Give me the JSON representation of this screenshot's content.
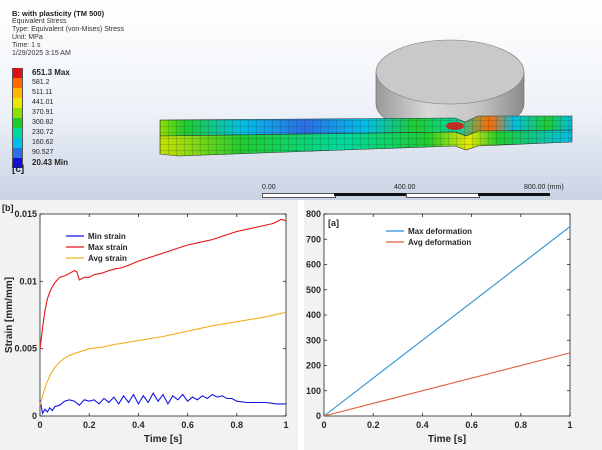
{
  "fea": {
    "title": "B: with plasticity (TM 500)",
    "lines": [
      "Equivalent Stress",
      "Type: Equivalent (von-Mises) Stress",
      "Unit: MPa",
      "Time: 1 s",
      "1/29/2025 3:15 AM"
    ],
    "legend": [
      {
        "value": "651.3 Max",
        "color": "#e01010",
        "bold": true
      },
      {
        "value": "581.2",
        "color": "#ff6a00",
        "bold": false
      },
      {
        "value": "511.11",
        "color": "#ffb400",
        "bold": false
      },
      {
        "value": "441.01",
        "color": "#e8e800",
        "bold": false
      },
      {
        "value": "370.91",
        "color": "#8fe000",
        "bold": false
      },
      {
        "value": "300.82",
        "color": "#1ecc2e",
        "bold": false
      },
      {
        "value": "230.72",
        "color": "#00d8a0",
        "bold": false
      },
      {
        "value": "160.62",
        "color": "#00bfe6",
        "bold": false
      },
      {
        "value": "90.527",
        "color": "#2a6ee8",
        "bold": false
      },
      {
        "value": "20.43 Min",
        "color": "#1010d8",
        "bold": true
      }
    ],
    "panel_label": "[c]",
    "scale_labels": [
      "0.00",
      "400.00",
      "800.00 (mm)"
    ]
  },
  "chart_data": [
    {
      "type": "line",
      "panel_label": "[b]",
      "xlabel": "Time [s]",
      "ylabel": "Strain [mm/mm]",
      "xlim": [
        0,
        1
      ],
      "ylim": [
        0,
        0.015
      ],
      "xticks": [
        "0",
        "0.2",
        "0.4",
        "0.6",
        "0.8",
        "1"
      ],
      "yticks": [
        "0",
        "0.005",
        "0.01",
        "0.015"
      ],
      "ytick_values": [
        0,
        0.005,
        0.01,
        0.015
      ],
      "legend_position": "top-left",
      "series": [
        {
          "name": "Min strain",
          "color": "#1414e6",
          "x": [
            0,
            0.01,
            0.02,
            0.03,
            0.04,
            0.05,
            0.06,
            0.08,
            0.1,
            0.12,
            0.14,
            0.16,
            0.18,
            0.2,
            0.22,
            0.24,
            0.26,
            0.28,
            0.3,
            0.32,
            0.34,
            0.36,
            0.38,
            0.4,
            0.42,
            0.44,
            0.46,
            0.48,
            0.5,
            0.52,
            0.54,
            0.56,
            0.58,
            0.6,
            0.62,
            0.64,
            0.66,
            0.68,
            0.7,
            0.72,
            0.74,
            0.76,
            0.78,
            0.8,
            0.84,
            0.88,
            0.92,
            0.96,
            1.0
          ],
          "y": [
            0.0012,
            0.0002,
            0.0005,
            0.0003,
            0.0006,
            0.0004,
            0.0007,
            0.0008,
            0.0011,
            0.0012,
            0.0011,
            0.0008,
            0.0012,
            0.0011,
            0.0012,
            0.0009,
            0.0013,
            0.001,
            0.0014,
            0.0009,
            0.0015,
            0.001,
            0.0016,
            0.0009,
            0.0015,
            0.001,
            0.0017,
            0.0011,
            0.0016,
            0.0009,
            0.0015,
            0.0012,
            0.0016,
            0.0011,
            0.0014,
            0.0012,
            0.0015,
            0.0013,
            0.0016,
            0.0014,
            0.0015,
            0.0013,
            0.0013,
            0.0011,
            0.001,
            0.001,
            0.001,
            0.0009,
            0.0009
          ]
        },
        {
          "name": "Max strain",
          "color": "#e61414",
          "x": [
            0,
            0.01,
            0.02,
            0.03,
            0.04,
            0.05,
            0.06,
            0.07,
            0.08,
            0.1,
            0.12,
            0.14,
            0.15,
            0.16,
            0.18,
            0.2,
            0.22,
            0.25,
            0.28,
            0.3,
            0.33,
            0.36,
            0.4,
            0.45,
            0.5,
            0.55,
            0.6,
            0.65,
            0.7,
            0.75,
            0.8,
            0.85,
            0.9,
            0.95,
            0.98,
            1.0
          ],
          "y": [
            0.005,
            0.0065,
            0.0078,
            0.0087,
            0.0092,
            0.0096,
            0.0099,
            0.0101,
            0.0103,
            0.0104,
            0.0106,
            0.0108,
            0.0107,
            0.0101,
            0.0103,
            0.0103,
            0.0105,
            0.0106,
            0.0108,
            0.0109,
            0.011,
            0.0112,
            0.0115,
            0.0118,
            0.0121,
            0.0124,
            0.0127,
            0.0129,
            0.0131,
            0.0134,
            0.0137,
            0.0139,
            0.0141,
            0.0143,
            0.0146,
            0.0145
          ]
        },
        {
          "name": "Avg strain",
          "color": "#f0b020",
          "x": [
            0,
            0.02,
            0.04,
            0.06,
            0.08,
            0.1,
            0.12,
            0.15,
            0.2,
            0.25,
            0.3,
            0.4,
            0.5,
            0.6,
            0.7,
            0.8,
            0.9,
            1.0
          ],
          "y": [
            0.0008,
            0.0021,
            0.003,
            0.0036,
            0.004,
            0.0043,
            0.0045,
            0.0047,
            0.005,
            0.0051,
            0.0053,
            0.0056,
            0.0059,
            0.0063,
            0.0067,
            0.007,
            0.0073,
            0.0077
          ]
        }
      ]
    },
    {
      "type": "line",
      "panel_label": "[a]",
      "xlabel": "Time [s]",
      "ylabel": "Deformation [mm]",
      "xlim": [
        0,
        1
      ],
      "ylim": [
        0,
        800
      ],
      "xticks": [
        "0",
        "0.2",
        "0.4",
        "0.6",
        "0.8",
        "1"
      ],
      "yticks": [
        "0",
        "100",
        "200",
        "300",
        "400",
        "500",
        "600",
        "700",
        "800"
      ],
      "ytick_values": [
        0,
        100,
        200,
        300,
        400,
        500,
        600,
        700,
        800
      ],
      "legend_position": "top-center",
      "series": [
        {
          "name": "Max deformation",
          "color": "#2b8fd6",
          "x": [
            0,
            1
          ],
          "y": [
            0,
            750
          ]
        },
        {
          "name": "Avg deformation",
          "color": "#e0603a",
          "x": [
            0,
            1
          ],
          "y": [
            0,
            250
          ]
        }
      ]
    }
  ]
}
